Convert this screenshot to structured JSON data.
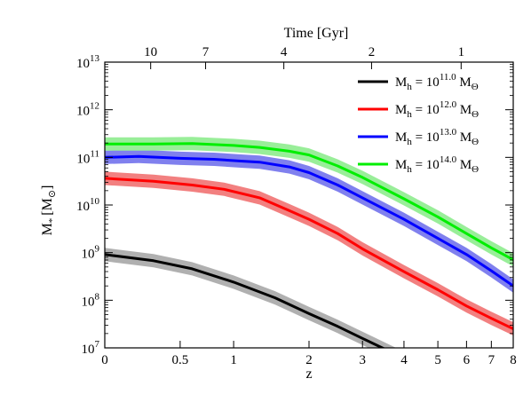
{
  "chart_data": {
    "type": "line",
    "x_scale": "log(1+z)",
    "y_scale": "log",
    "xlim": [
      0,
      8
    ],
    "ylim": [
      10000000.0,
      10000000000000.0
    ],
    "xlabel": "z",
    "ylabel_main": "M",
    "ylabel_sub": "*",
    "ylabel_unit": "[M",
    "ylabel_unit_sub": "⊙",
    "ylabel_close": "]",
    "top_axis_label": "Time [Gyr]",
    "x_ticks": [
      {
        "value": 0,
        "label": "0"
      },
      {
        "value": 0.5,
        "label": "0.5"
      },
      {
        "value": 1,
        "label": "1"
      },
      {
        "value": 2,
        "label": "2"
      },
      {
        "value": 3,
        "label": "3"
      },
      {
        "value": 4,
        "label": "4"
      },
      {
        "value": 5,
        "label": "5"
      },
      {
        "value": 6,
        "label": "6"
      },
      {
        "value": 7,
        "label": "7"
      },
      {
        "value": 8,
        "label": "8"
      }
    ],
    "top_ticks": [
      {
        "z": 0.28,
        "label": "10"
      },
      {
        "z": 0.72,
        "label": "7"
      },
      {
        "z": 1.62,
        "label": "4"
      },
      {
        "z": 3.2,
        "label": "2"
      },
      {
        "z": 5.8,
        "label": "1"
      }
    ],
    "y_ticks": [
      {
        "exp": 7,
        "base": "10",
        "sup": "7"
      },
      {
        "exp": 8,
        "base": "10",
        "sup": "8"
      },
      {
        "exp": 9,
        "base": "10",
        "sup": "9"
      },
      {
        "exp": 10,
        "base": "10",
        "sup": "10"
      },
      {
        "exp": 11,
        "base": "10",
        "sup": "11"
      },
      {
        "exp": 12,
        "base": "10",
        "sup": "12"
      },
      {
        "exp": 13,
        "base": "10",
        "sup": "13"
      }
    ],
    "legend": {
      "placement": "top-right",
      "prefix": "M",
      "prefix_sub": "h",
      "eq": " = 10",
      "unit": " M",
      "unit_sub": "Θ"
    },
    "series": [
      {
        "name": "11.0",
        "color": "#000000",
        "band_color": "#b0b0b0",
        "band_width_dex": 0.14,
        "points": [
          [
            0,
            8.96
          ],
          [
            0.3,
            8.83
          ],
          [
            0.6,
            8.66
          ],
          [
            1,
            8.38
          ],
          [
            1.5,
            8.05
          ],
          [
            2,
            7.72
          ],
          [
            2.5,
            7.45
          ],
          [
            3,
            7.2
          ],
          [
            3.5,
            6.98
          ],
          [
            4,
            6.78
          ]
        ]
      },
      {
        "name": "12.0",
        "color": "#ff0000",
        "band_color": "#f28080",
        "band_width_dex": 0.14,
        "points": [
          [
            0,
            10.56
          ],
          [
            0.3,
            10.5
          ],
          [
            0.6,
            10.42
          ],
          [
            0.9,
            10.33
          ],
          [
            1.3,
            10.15
          ],
          [
            1.7,
            9.88
          ],
          [
            2,
            9.7
          ],
          [
            2.5,
            9.4
          ],
          [
            3,
            9.08
          ],
          [
            4,
            8.6
          ],
          [
            5,
            8.22
          ],
          [
            6,
            7.88
          ],
          [
            7,
            7.62
          ],
          [
            8,
            7.4
          ]
        ]
      },
      {
        "name": "13.0",
        "color": "#0000ff",
        "band_color": "#8080ee",
        "band_width_dex": 0.14,
        "points": [
          [
            0,
            11.0
          ],
          [
            0.2,
            11.02
          ],
          [
            0.5,
            10.98
          ],
          [
            0.8,
            10.96
          ],
          [
            1.1,
            10.92
          ],
          [
            1.3,
            10.9
          ],
          [
            1.7,
            10.8
          ],
          [
            2,
            10.68
          ],
          [
            2.5,
            10.42
          ],
          [
            3,
            10.15
          ],
          [
            4,
            9.7
          ],
          [
            5,
            9.3
          ],
          [
            6,
            8.96
          ],
          [
            7,
            8.62
          ],
          [
            8,
            8.3
          ]
        ]
      },
      {
        "name": "14.0",
        "color": "#00ee00",
        "band_color": "#99ee99",
        "band_width_dex": 0.14,
        "points": [
          [
            0,
            11.28
          ],
          [
            0.3,
            11.28
          ],
          [
            0.6,
            11.29
          ],
          [
            1,
            11.25
          ],
          [
            1.3,
            11.21
          ],
          [
            1.7,
            11.13
          ],
          [
            2,
            11.05
          ],
          [
            2.5,
            10.82
          ],
          [
            3,
            10.58
          ],
          [
            4,
            10.13
          ],
          [
            5,
            9.75
          ],
          [
            6,
            9.4
          ],
          [
            7,
            9.1
          ],
          [
            8,
            8.85
          ]
        ]
      }
    ]
  }
}
